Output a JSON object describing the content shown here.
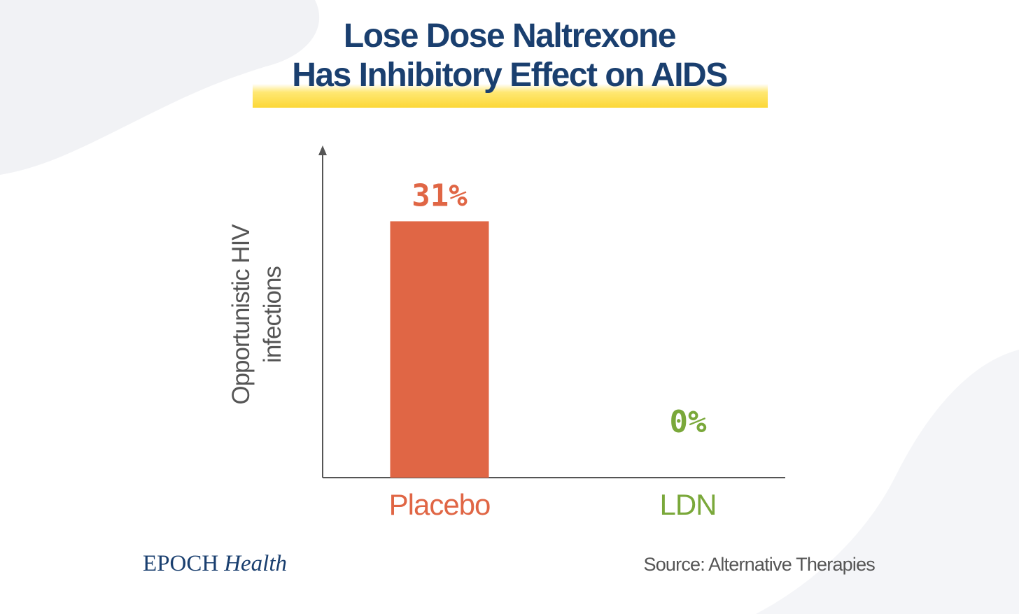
{
  "title": {
    "line1": "Lose Dose Naltrexone",
    "line2": "Has Inhibitory Effect on AIDS"
  },
  "chart_data": {
    "type": "bar",
    "title": "Lose Dose Naltrexone Has Inhibitory Effect on AIDS",
    "categories": [
      "Placebo",
      "LDN"
    ],
    "values": [
      31,
      0
    ],
    "value_labels": [
      "31%",
      "0%"
    ],
    "ylabel_lines": [
      "Opportunistic HIV",
      "infections"
    ],
    "xlabel": "",
    "ylim": [
      0,
      40
    ],
    "grid": false,
    "colors": [
      "#e06645",
      "#7aa83a"
    ]
  },
  "footer": {
    "brand_main": "EPOCH",
    "brand_sub": "Health",
    "source": "Source: Alternative Therapies"
  },
  "colors": {
    "title": "#1a3f6f",
    "highlight": "#fcd736",
    "axis": "#555555"
  }
}
